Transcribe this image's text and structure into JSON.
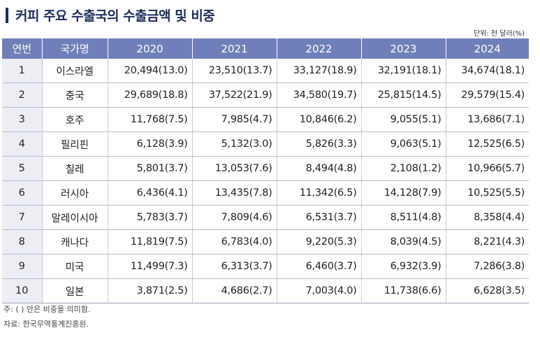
{
  "title": "커피 주요 수출국의 수출금액 및 비중",
  "unit": "단위: 천 달러(%)",
  "headers": [
    "연번",
    "국가명",
    "2020",
    "2021",
    "2022",
    "2023",
    "2024"
  ],
  "rows": [
    [
      "1",
      "이스라엘",
      "20,494(13.0)",
      "23,510(13.7)",
      "33,127(18.9)",
      "32,191(18.1)",
      "34,674(18.1)"
    ],
    [
      "2",
      "중국",
      "29,689(18.8)",
      "37,522(21.9)",
      "34,580(19.7)",
      "25,815(14.5)",
      "29,579(15.4)"
    ],
    [
      "3",
      "호주",
      "11,768(7.5)",
      "7,985(4.7)",
      "10,846(6.2)",
      "9,055(5.1)",
      "13,686(7.1)"
    ],
    [
      "4",
      "필리핀",
      "6,128(3.9)",
      "5,132(3.0)",
      "5,826(3.3)",
      "9,063(5.1)",
      "12,525(6.5)"
    ],
    [
      "5",
      "칠레",
      "5,801(3.7)",
      "13,053(7.6)",
      "8,494(4.8)",
      "2,108(1.2)",
      "10,966(5.7)"
    ],
    [
      "6",
      "러시아",
      "6,436(4.1)",
      "13,435(7.8)",
      "11,342(6.5)",
      "14,128(7.9)",
      "10,525(5.5)"
    ],
    [
      "7",
      "말레이시아",
      "5,783(3.7)",
      "7,809(4.6)",
      "6,531(3.7)",
      "8,511(4.8)",
      "8,358(4.4)"
    ],
    [
      "8",
      "캐나다",
      "11,819(7.5)",
      "6,783(4.0)",
      "9,220(5.3)",
      "8,039(4.5)",
      "8,221(4.3)"
    ],
    [
      "9",
      "미국",
      "11,499(7.3)",
      "6,313(3.7)",
      "6,460(3.7)",
      "6,932(3.9)",
      "7,286(3.8)"
    ],
    [
      "10",
      "일본",
      "3,871(2.5)",
      "4,686(2.7)",
      "7,003(4.0)",
      "11,738(6.6)",
      "6,628(3.5)"
    ]
  ],
  "notes": [
    "주: ( ) 안은 비중을 의미함.",
    "자료: 한국무역통계진흥원."
  ],
  "colors": {
    "header_bg": "#6f7fb8",
    "title": "#1e2d59",
    "index_bg": "#eceef4"
  }
}
